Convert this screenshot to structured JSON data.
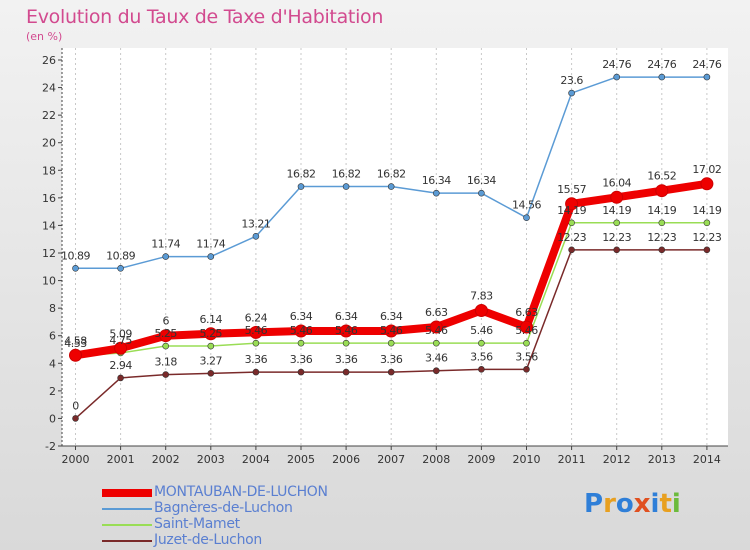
{
  "title": "Evolution du Taux de Taxe d'Habitation",
  "subtitle": "(en %)",
  "logo_text": "Proxiti",
  "colors": {
    "title": "#d24a8f",
    "axis": "#333333",
    "grid": "#bbbbbb",
    "legend_text": "#5a7fd1"
  },
  "chart_data": {
    "type": "line",
    "x": [
      2000,
      2001,
      2002,
      2003,
      2004,
      2005,
      2006,
      2007,
      2008,
      2009,
      2010,
      2011,
      2012,
      2013,
      2014
    ],
    "ylim": [
      -2,
      26
    ],
    "yticks": [
      -2,
      0,
      2,
      4,
      6,
      8,
      10,
      12,
      14,
      16,
      18,
      20,
      22,
      24,
      26
    ],
    "grid": "vertical dashed",
    "legend_placement": "bottom-left",
    "series": [
      {
        "name": "Bagnères-de-Luchon",
        "color": "#5b9bd5",
        "values": [
          10.89,
          10.89,
          11.74,
          11.74,
          13.21,
          16.82,
          16.82,
          16.82,
          16.34,
          16.34,
          14.56,
          23.6,
          24.76,
          24.76,
          24.76
        ],
        "labels": [
          "10.89",
          "10.89",
          "11.74",
          "11.74",
          "13.21",
          "16.82",
          "16.82",
          "16.82",
          "16.34",
          "16.34",
          "14.56",
          "23.6",
          "24.76",
          "24.76",
          "24.76"
        ]
      },
      {
        "name": "Saint-Mamet",
        "color": "#99dd55",
        "values": [
          4.53,
          4.75,
          5.25,
          5.25,
          5.46,
          5.46,
          5.46,
          5.46,
          5.46,
          5.46,
          5.46,
          14.19,
          14.19,
          14.19,
          14.19
        ],
        "labels": [
          "4.53",
          "4.75",
          "5.25",
          "5.25",
          "5.46",
          "5.46",
          "5.46",
          "5.46",
          "5.46",
          "5.46",
          "5.46",
          "14.19",
          "14.19",
          "14.19",
          "14.19"
        ]
      },
      {
        "name": "Juzet-de-Luchon",
        "color": "#7a2a2a",
        "values": [
          0,
          2.94,
          3.18,
          3.27,
          3.36,
          3.36,
          3.36,
          3.36,
          3.46,
          3.56,
          3.56,
          12.23,
          12.23,
          12.23,
          12.23
        ],
        "labels": [
          "0",
          "2.94",
          "3.18",
          "3.27",
          "3.36",
          "3.36",
          "3.36",
          "3.36",
          "3.46",
          "3.56",
          "3.56",
          "12.23",
          "12.23",
          "12.23",
          "12.23"
        ]
      },
      {
        "name": "MONTAUBAN-DE-LUCHON",
        "color": "#ee0000",
        "values": [
          4.58,
          5.09,
          6,
          6.14,
          6.24,
          6.34,
          6.34,
          6.34,
          6.63,
          7.83,
          6.63,
          15.57,
          16.04,
          16.52,
          17.02
        ],
        "labels": [
          "4.58",
          "5.09",
          "6",
          "6.14",
          "6.24",
          "6.34",
          "6.34",
          "6.34",
          "6.63",
          "7.83",
          "6.63",
          "15.57",
          "16.04",
          "16.52",
          "17.02"
        ]
      }
    ],
    "legend_order": [
      "MONTAUBAN-DE-LUCHON",
      "Bagnères-de-Luchon",
      "Saint-Mamet",
      "Juzet-de-Luchon"
    ]
  }
}
